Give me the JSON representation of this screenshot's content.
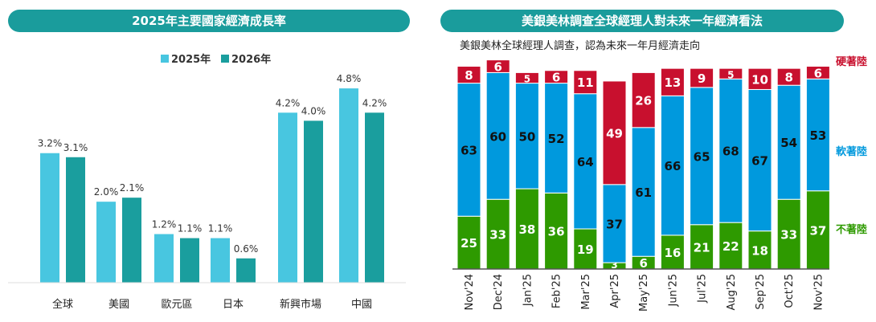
{
  "chart_data": [
    {
      "type": "bar",
      "title": "2025年主要國家經濟成長率",
      "categories": [
        "全球",
        "美國",
        "歐元區",
        "日本",
        "新興市場",
        "中國"
      ],
      "series": [
        {
          "name": "2025年",
          "color": "#48c6e0",
          "values": [
            3.2,
            2.0,
            1.2,
            1.1,
            4.2,
            4.8
          ]
        },
        {
          "name": "2026年",
          "color": "#1a9e9e",
          "values": [
            3.1,
            2.1,
            1.1,
            0.6,
            4.0,
            4.2
          ]
        }
      ],
      "unit": "%",
      "ylim": [
        0,
        5
      ],
      "legend": "top-center",
      "grid": false
    },
    {
      "type": "bar",
      "stacked": true,
      "title": "美銀美林調查全球經理人對未來一年經濟看法",
      "subtitle": "美銀美林全球經理人調查，認為未來一年月經濟走向",
      "categories": [
        "Nov'24",
        "Dec'24",
        "Jan'25",
        "Feb'25",
        "Mar'25",
        "Apr'25",
        "May'25",
        "Jun'25",
        "Jul'25",
        "Aug'25",
        "Sep'25",
        "Oct'25",
        "Nov'25"
      ],
      "series": [
        {
          "name": "不著陸",
          "color": "#2e9a00",
          "values": [
            25,
            33,
            38,
            36,
            19,
            3,
            6,
            16,
            21,
            22,
            18,
            33,
            37
          ]
        },
        {
          "name": "軟著陸",
          "color": "#0099dd",
          "values": [
            63,
            60,
            50,
            52,
            64,
            37,
            61,
            66,
            65,
            68,
            67,
            54,
            53
          ]
        },
        {
          "name": "硬著陸",
          "color": "#c8102e",
          "values": [
            8,
            6,
            5,
            6,
            11,
            49,
            26,
            13,
            9,
            5,
            10,
            8,
            6
          ]
        }
      ],
      "ylim": [
        0,
        100
      ],
      "legend": "right"
    }
  ]
}
